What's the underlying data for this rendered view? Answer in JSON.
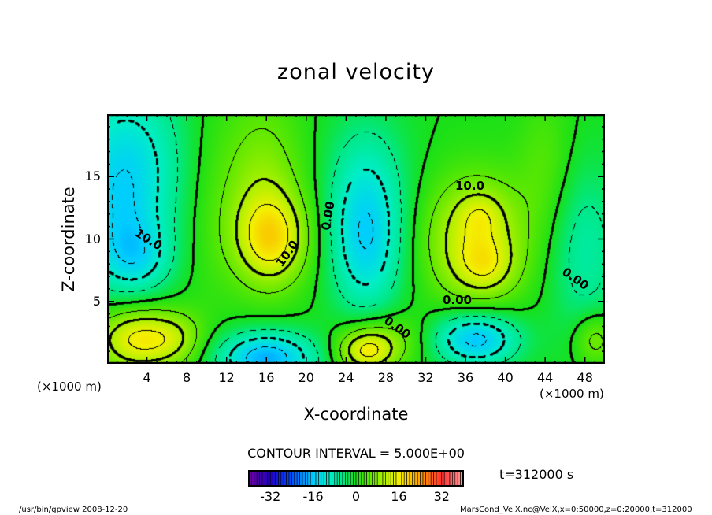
{
  "chart_data": {
    "type": "heatmap",
    "subtype": "filled contour",
    "title": "zonal velocity",
    "xlabel": "X-coordinate",
    "ylabel": "Z-coordinate",
    "x_unit": "(×1000 m)",
    "z_unit": "(×1000 m)",
    "xlim": [
      0,
      50
    ],
    "ylim": [
      0,
      20
    ],
    "x_ticks": [
      "4",
      "8",
      "12",
      "16",
      "20",
      "24",
      "28",
      "32",
      "36",
      "40",
      "44",
      "48"
    ],
    "y_ticks": [
      "5",
      "10",
      "15"
    ],
    "contour_interval_text": "CONTOUR INTERVAL = 5.000E+00",
    "contour_interval": 5,
    "contour_labels": [
      "10.0",
      "10.0",
      "0.00",
      "10.0",
      "0.00",
      "0.00",
      "0.00"
    ],
    "colorbar": {
      "range": [
        -40,
        40
      ],
      "ticks": [
        "-32",
        "-16",
        "0",
        "16",
        "32"
      ]
    },
    "time_label": "t=312000 s",
    "field_components": [
      [
        2,
        16,
        -12,
        4,
        5
      ],
      [
        3,
        8.5,
        -8,
        2.5,
        2
      ],
      [
        1,
        11,
        -6,
        3,
        4
      ],
      [
        3,
        2,
        16,
        3,
        1.8
      ],
      [
        7,
        2,
        6,
        2,
        1.5
      ],
      [
        16.5,
        10,
        14,
        2.5,
        2.5
      ],
      [
        15.5,
        14,
        8,
        3,
        5
      ],
      [
        16,
        0.5,
        -18,
        3.5,
        1.5
      ],
      [
        26,
        9.5,
        -13,
        2.5,
        4
      ],
      [
        26,
        15,
        -6,
        3,
        4
      ],
      [
        26,
        1,
        14,
        2,
        1.2
      ],
      [
        28,
        2,
        6,
        3,
        1.5
      ],
      [
        37,
        10,
        14,
        3.5,
        3.5
      ],
      [
        38,
        7.8,
        6,
        2,
        1.5
      ],
      [
        37.5,
        12,
        4,
        1.5,
        1.2
      ],
      [
        37,
        2,
        -17,
        3,
        1.5
      ],
      [
        48,
        9,
        -7,
        2.5,
        5
      ],
      [
        49,
        2,
        8,
        1.5,
        1.5
      ],
      [
        44,
        16,
        4,
        2,
        4
      ],
      [
        10,
        12,
        2,
        2,
        6
      ]
    ],
    "colormap": [
      [
        -40,
        "#7000a0"
      ],
      [
        -32,
        "#2000c0"
      ],
      [
        -24,
        "#0050ff"
      ],
      [
        -16,
        "#00ccff"
      ],
      [
        -10,
        "#00eec8"
      ],
      [
        -5,
        "#00e888"
      ],
      [
        0,
        "#18e018"
      ],
      [
        5,
        "#60e800"
      ],
      [
        10,
        "#a8f000"
      ],
      [
        16,
        "#f4f000"
      ],
      [
        24,
        "#ffa000"
      ],
      [
        32,
        "#ff3030"
      ],
      [
        40,
        "#ff9898"
      ]
    ]
  },
  "footer": {
    "left": "/usr/bin/gpview  2008-12-20",
    "right": "MarsCond_VelX.nc@VelX,x=0:50000,z=0:20000,t=312000"
  }
}
